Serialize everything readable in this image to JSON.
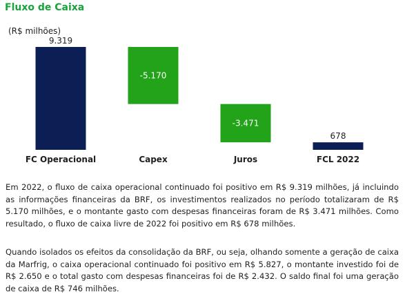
{
  "title": "Fluxo de Caixa",
  "colors": {
    "title": "#18a33b",
    "positive_bar": "#0c1f55",
    "negative_bar": "#22a319"
  },
  "chart_data": {
    "type": "bar",
    "subtype": "waterfall",
    "unit_label": "(R$ milhões)",
    "categories": [
      "FC Operacional",
      "Capex",
      "Juros",
      "FCL 2022"
    ],
    "values": [
      9319,
      -5170,
      -3471,
      678
    ],
    "data_labels": [
      "9.319",
      "-5.170",
      "-3.471",
      "678"
    ],
    "ylim": [
      0,
      9319
    ],
    "grid": false,
    "legend": "none"
  },
  "paragraphs": [
    "Em 2022, o fluxo de caixa operacional continuado foi positivo em R$ 9.319 milhões, já incluindo as informações financeiras da BRF, os investimentos realizados no período totalizaram de R$ 5.170 milhões, e o montante gasto com despesas financeiras foram de R$ 3.471 milhões. Como resultado, o fluxo de caixa livre de 2022 foi positivo em R$ 678 milhões.",
    "Quando isolados os efeitos da consolidação da BRF, ou seja, olhando somente a geração de caixa da Marfrig, o caixa operacional continuado foi positivo em R$ 5.827, o montante investido foi de R$ 2.650 e o total gasto com despesas financeiras foi de R$ 2.432. O saldo final foi uma geração de caixa de R$ 746 milhões."
  ]
}
